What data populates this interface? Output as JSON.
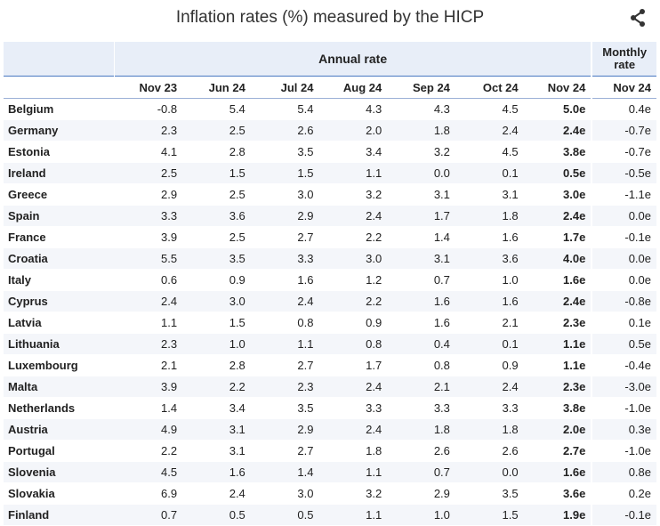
{
  "title": "Inflation rates (%) measured by the HICP",
  "header": {
    "group_annual": "Annual rate",
    "group_monthly_line1": "Monthly",
    "group_monthly_line2": "rate",
    "columns": [
      "Nov 23",
      "Jun 24",
      "Jul 24",
      "Aug 24",
      "Sep 24",
      "Oct 24",
      "Nov 24",
      "Nov 24"
    ]
  },
  "rows": [
    {
      "country": "Belgium",
      "values": [
        "-0.8",
        "5.4",
        "5.4",
        "4.3",
        "4.3",
        "4.5",
        "5.0e",
        "0.4e"
      ]
    },
    {
      "country": "Germany",
      "values": [
        "2.3",
        "2.5",
        "2.6",
        "2.0",
        "1.8",
        "2.4",
        "2.4e",
        "-0.7e"
      ]
    },
    {
      "country": "Estonia",
      "values": [
        "4.1",
        "2.8",
        "3.5",
        "3.4",
        "3.2",
        "4.5",
        "3.8e",
        "-0.7e"
      ]
    },
    {
      "country": "Ireland",
      "values": [
        "2.5",
        "1.5",
        "1.5",
        "1.1",
        "0.0",
        "0.1",
        "0.5e",
        "-0.5e"
      ]
    },
    {
      "country": "Greece",
      "values": [
        "2.9",
        "2.5",
        "3.0",
        "3.2",
        "3.1",
        "3.1",
        "3.0e",
        "-1.1e"
      ]
    },
    {
      "country": "Spain",
      "values": [
        "3.3",
        "3.6",
        "2.9",
        "2.4",
        "1.7",
        "1.8",
        "2.4e",
        "0.0e"
      ]
    },
    {
      "country": "France",
      "values": [
        "3.9",
        "2.5",
        "2.7",
        "2.2",
        "1.4",
        "1.6",
        "1.7e",
        "-0.1e"
      ]
    },
    {
      "country": "Croatia",
      "values": [
        "5.5",
        "3.5",
        "3.3",
        "3.0",
        "3.1",
        "3.6",
        "4.0e",
        "0.0e"
      ]
    },
    {
      "country": "Italy",
      "values": [
        "0.6",
        "0.9",
        "1.6",
        "1.2",
        "0.7",
        "1.0",
        "1.6e",
        "0.0e"
      ]
    },
    {
      "country": "Cyprus",
      "values": [
        "2.4",
        "3.0",
        "2.4",
        "2.2",
        "1.6",
        "1.6",
        "2.4e",
        "-0.8e"
      ]
    },
    {
      "country": "Latvia",
      "values": [
        "1.1",
        "1.5",
        "0.8",
        "0.9",
        "1.6",
        "2.1",
        "2.3e",
        "0.1e"
      ]
    },
    {
      "country": "Lithuania",
      "values": [
        "2.3",
        "1.0",
        "1.1",
        "0.8",
        "0.4",
        "0.1",
        "1.1e",
        "0.5e"
      ]
    },
    {
      "country": "Luxembourg",
      "values": [
        "2.1",
        "2.8",
        "2.7",
        "1.7",
        "0.8",
        "0.9",
        "1.1e",
        "-0.4e"
      ]
    },
    {
      "country": "Malta",
      "values": [
        "3.9",
        "2.2",
        "2.3",
        "2.4",
        "2.1",
        "2.4",
        "2.3e",
        "-3.0e"
      ]
    },
    {
      "country": "Netherlands",
      "values": [
        "1.4",
        "3.4",
        "3.5",
        "3.3",
        "3.3",
        "3.3",
        "3.8e",
        "-1.0e"
      ]
    },
    {
      "country": "Austria",
      "values": [
        "4.9",
        "3.1",
        "2.9",
        "2.4",
        "1.8",
        "1.8",
        "2.0e",
        "0.3e"
      ]
    },
    {
      "country": "Portugal",
      "values": [
        "2.2",
        "3.1",
        "2.7",
        "1.8",
        "2.6",
        "2.6",
        "2.7e",
        "-1.0e"
      ]
    },
    {
      "country": "Slovenia",
      "values": [
        "4.5",
        "1.6",
        "1.4",
        "1.1",
        "0.7",
        "0.0",
        "1.6e",
        "0.8e"
      ]
    },
    {
      "country": "Slovakia",
      "values": [
        "6.9",
        "2.4",
        "3.0",
        "3.2",
        "2.9",
        "3.5",
        "3.6e",
        "0.2e"
      ]
    },
    {
      "country": "Finland",
      "values": [
        "0.7",
        "0.5",
        "0.5",
        "1.1",
        "1.0",
        "1.5",
        "1.9e",
        "-0.1e"
      ]
    }
  ],
  "icons": {
    "share": "share-icon"
  },
  "colors": {
    "header_bg": "#e8eef8",
    "row_alt": "#f4f6fa",
    "accent_line": "#4a78c2"
  }
}
